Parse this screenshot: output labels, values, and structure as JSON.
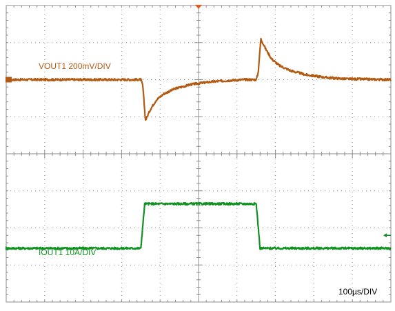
{
  "chart_data": {
    "type": "line",
    "title": "",
    "grid": true,
    "divisions": {
      "horizontal": 10,
      "vertical": 8
    },
    "x_unit_label": "100µs/DIV",
    "x_range_div": [
      0,
      10
    ],
    "y_range_div": [
      -4,
      4
    ],
    "series": [
      {
        "name": "VOUT1 200mV/DIV",
        "color": "#b35a12",
        "offset_div": 2.0,
        "x": [
          0,
          3.5,
          3.55,
          3.62,
          3.75,
          3.9,
          4.1,
          4.4,
          4.8,
          5.3,
          5.8,
          6.2,
          6.5,
          6.55,
          6.62,
          6.75,
          6.9,
          7.1,
          7.4,
          7.8,
          8.3,
          8.8,
          10
        ],
        "values": [
          0,
          0,
          -0.15,
          -1.1,
          -0.8,
          -0.55,
          -0.38,
          -0.24,
          -0.13,
          -0.06,
          -0.02,
          0,
          0,
          0.18,
          1.1,
          0.82,
          0.56,
          0.38,
          0.24,
          0.13,
          0.06,
          0.02,
          0
        ]
      },
      {
        "name": "IOUT1 10A/DIV",
        "color": "#119121",
        "offset_div": -2.55,
        "x": [
          0,
          3.5,
          3.6,
          6.5,
          6.6,
          10
        ],
        "values": [
          0,
          0,
          1.2,
          1.2,
          0,
          0
        ]
      }
    ]
  }
}
